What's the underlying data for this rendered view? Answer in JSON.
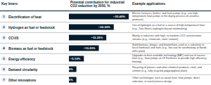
{
  "chart_data": {
    "type": "bar",
    "orientation": "horizontal",
    "column_headers": [
      "Key levers",
      "Potential contribution for industrial CO2 reduction by 2050, %",
      "Example applications"
    ],
    "row_numbers": [
      "1",
      "2",
      "3",
      "4",
      "5",
      "6",
      "7"
    ],
    "categories": [
      "Electrification of heat",
      "Hydrogen as fuel or feedstock",
      "CCU/S",
      "Biomass as fuel or feedstock",
      "Energy efficiency",
      "Demand circularity",
      "Other innovations"
    ],
    "values": [
      40,
      30,
      25,
      20,
      10,
      5,
      5
    ],
    "value_labels": [
      "~35-40%",
      "~20-30%",
      "~15-25%",
      "~10-20%",
      "~5-10%",
      "~5%",
      "~5%"
    ],
    "applications": [
      "Electric furnaces, boilers, and heat pumps (e.g., use high-temperature heat pumps in the drying process of ceramics producer)",
      "Use of hydrogen as a fuel or a source of high-temperature heat (e.g., Tata Steel's hydrogen-based steelmaking)",
      "Mainly in industries with high- to medium-CO2 concentration streams (e.g., chemicals, steel, cement)",
      "Solid biomass, biogas, and biomethane used as a substitute to fossil feedstock and fuels (e.g., bio coal for steelmaking at Nordic mill's plant)",
      "Upgrades to best available technology (BAT) and use of excess heat (e.g., heat pumps at CF Fertilisers to provide high efficiency heating)",
      "Recycling of plastics and other chemical products, steel, and cement (e.g., fully recycled polypropylene plant)",
      "Other technologies such as waste heat, heat pumps, direct reduction, or novel process design"
    ],
    "color": "#051c2c",
    "xlim": [
      0,
      40
    ],
    "data_labels": true,
    "tick_labels": false,
    "grid": false
  }
}
